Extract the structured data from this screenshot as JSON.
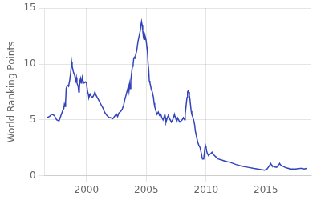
{
  "chart_data": {
    "type": "line",
    "ylabel": "World Ranking Points",
    "color": "#3344bb",
    "xlim": [
      1996.5,
      2018.8
    ],
    "ylim": [
      0,
      15
    ],
    "xticks": [
      2000,
      2005,
      2010,
      2015
    ],
    "yticks": [
      0,
      5,
      10,
      15
    ],
    "grid": true,
    "x": [
      1996.7,
      1996.9,
      1997.1,
      1997.3,
      1997.5,
      1997.7,
      1997.9,
      1998.0,
      1998.1,
      1998.15,
      1998.2,
      1998.25,
      1998.3,
      1998.4,
      1998.5,
      1998.6,
      1998.65,
      1998.7,
      1998.75,
      1998.8,
      1998.9,
      1999.0,
      1999.1,
      1999.15,
      1999.2,
      1999.3,
      1999.35,
      1999.4,
      1999.45,
      1999.5,
      1999.55,
      1999.6,
      1999.65,
      1999.7,
      1999.8,
      1999.9,
      2000.0,
      2000.05,
      2000.1,
      2000.15,
      2000.2,
      2000.3,
      2000.4,
      2000.5,
      2000.6,
      2000.7,
      2000.8,
      2000.9,
      2001.0,
      2001.2,
      2001.4,
      2001.5,
      2001.7,
      2001.9,
      2002.0,
      2002.2,
      2002.4,
      2002.5,
      2002.6,
      2002.7,
      2002.9,
      2003.0,
      2003.1,
      2003.2,
      2003.3,
      2003.4,
      2003.5,
      2003.55,
      2003.6,
      2003.65,
      2003.7,
      2003.75,
      2003.8,
      2003.85,
      2003.9,
      2003.95,
      2004.0,
      2004.05,
      2004.1,
      2004.2,
      2004.3,
      2004.4,
      2004.5,
      2004.55,
      2004.6,
      2004.65,
      2004.7,
      2004.75,
      2004.8,
      2004.85,
      2004.9,
      2004.95,
      2005.0,
      2005.05,
      2005.1,
      2005.15,
      2005.2,
      2005.25,
      2005.3,
      2005.35,
      2005.4,
      2005.5,
      2005.6,
      2005.65,
      2005.7,
      2005.75,
      2005.8,
      2005.9,
      2006.0,
      2006.1,
      2006.2,
      2006.3,
      2006.4,
      2006.5,
      2006.55,
      2006.6,
      2006.65,
      2006.7,
      2006.8,
      2006.85,
      2006.9,
      2007.0,
      2007.1,
      2007.2,
      2007.3,
      2007.35,
      2007.4,
      2007.5,
      2007.55,
      2007.6,
      2007.7,
      2007.8,
      2007.9,
      2008.0,
      2008.1,
      2008.2,
      2008.25,
      2008.3,
      2008.4,
      2008.45,
      2008.5,
      2008.55,
      2008.6,
      2008.65,
      2008.7,
      2008.75,
      2008.8,
      2008.9,
      2009.0,
      2009.05,
      2009.1,
      2009.2,
      2009.3,
      2009.4,
      2009.5,
      2009.6,
      2009.65,
      2009.7,
      2009.8,
      2009.85,
      2009.9,
      2009.95,
      2010.0,
      2010.05,
      2010.1,
      2010.2,
      2010.3,
      2010.4,
      2010.5,
      2010.6,
      2010.7,
      2010.8,
      2011.0,
      2011.3,
      2011.6,
      2012.0,
      2012.5,
      2013.0,
      2013.5,
      2014.0,
      2014.3,
      2014.6,
      2014.9,
      2015.1,
      2015.2,
      2015.3,
      2015.35,
      2015.4,
      2015.45,
      2015.5,
      2015.6,
      2015.7,
      2015.9,
      2016.0,
      2016.1,
      2016.15,
      2016.2,
      2016.3,
      2016.5,
      2016.7,
      2016.9,
      2017.0,
      2017.2,
      2017.5,
      2017.8,
      2018.0,
      2018.2,
      2018.4
    ],
    "values": [
      5.2,
      5.3,
      5.5,
      5.4,
      5.0,
      4.9,
      5.5,
      5.8,
      6.0,
      6.4,
      6.2,
      6.6,
      7.8,
      8.1,
      8.0,
      8.6,
      9.0,
      9.5,
      10.2,
      9.8,
      9.3,
      9.0,
      8.5,
      8.8,
      8.3,
      8.0,
      7.5,
      7.8,
      8.5,
      8.7,
      8.3,
      8.5,
      8.8,
      8.5,
      8.3,
      8.4,
      8.3,
      7.8,
      7.5,
      7.3,
      7.0,
      7.3,
      7.1,
      7.0,
      7.2,
      7.5,
      7.2,
      7.0,
      6.8,
      6.4,
      6.0,
      5.7,
      5.4,
      5.2,
      5.2,
      5.1,
      5.4,
      5.5,
      5.3,
      5.6,
      5.8,
      6.0,
      6.3,
      6.8,
      7.2,
      7.6,
      8.0,
      7.6,
      8.2,
      7.8,
      8.5,
      9.0,
      9.5,
      9.8,
      10.0,
      10.5,
      10.6,
      10.5,
      10.8,
      11.2,
      12.0,
      12.5,
      13.0,
      13.5,
      13.8,
      13.5,
      13.0,
      12.5,
      12.8,
      12.2,
      12.5,
      12.3,
      12.0,
      11.5,
      11.0,
      10.0,
      9.5,
      8.5,
      8.3,
      8.1,
      7.8,
      7.5,
      7.0,
      6.5,
      6.2,
      6.0,
      5.8,
      5.5,
      5.7,
      5.4,
      5.5,
      5.2,
      5.0,
      5.3,
      5.5,
      5.2,
      4.8,
      5.0,
      5.3,
      5.5,
      5.2,
      5.0,
      4.8,
      5.0,
      5.3,
      5.5,
      5.3,
      5.0,
      4.8,
      5.2,
      5.0,
      4.8,
      4.9,
      5.0,
      5.2,
      5.0,
      5.5,
      6.0,
      7.0,
      7.5,
      7.6,
      7.5,
      7.2,
      6.8,
      6.3,
      5.8,
      5.5,
      5.2,
      4.8,
      4.5,
      4.0,
      3.5,
      3.0,
      2.7,
      2.5,
      2.0,
      1.7,
      1.5,
      1.5,
      2.0,
      2.5,
      2.7,
      2.5,
      2.2,
      2.0,
      1.8,
      1.9,
      2.0,
      2.1,
      1.9,
      1.8,
      1.7,
      1.5,
      1.4,
      1.3,
      1.2,
      1.0,
      0.85,
      0.75,
      0.65,
      0.6,
      0.55,
      0.5,
      0.6,
      0.75,
      0.9,
      1.0,
      1.1,
      1.0,
      0.9,
      0.85,
      0.8,
      0.75,
      0.9,
      1.0,
      1.1,
      1.0,
      0.9,
      0.8,
      0.7,
      0.65,
      0.6,
      0.6,
      0.6,
      0.65,
      0.65,
      0.6,
      0.65
    ]
  }
}
